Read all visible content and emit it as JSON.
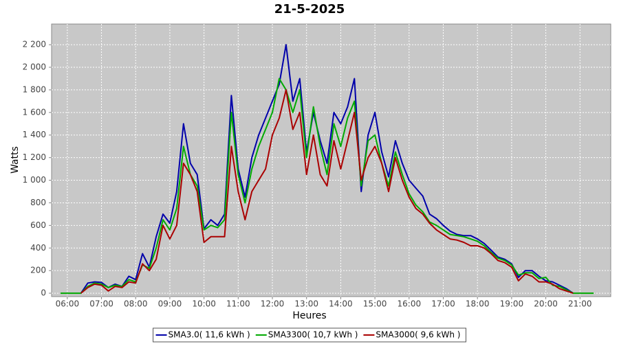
{
  "chart_data": {
    "type": "line",
    "title": "21-5-2025",
    "xlabel": "Heures",
    "ylabel": "Watts",
    "grid": true,
    "legend": "bottom",
    "xlim": [
      5.54,
      21.9
    ],
    "ylim": [
      -30,
      2383
    ],
    "xticks": [
      {
        "value": 6,
        "label": "06:00"
      },
      {
        "value": 7,
        "label": "07:00"
      },
      {
        "value": 8,
        "label": "08:00"
      },
      {
        "value": 9,
        "label": "09:00"
      },
      {
        "value": 10,
        "label": "10:00"
      },
      {
        "value": 11,
        "label": "11:00"
      },
      {
        "value": 12,
        "label": "12:00"
      },
      {
        "value": 13,
        "label": "13:00"
      },
      {
        "value": 14,
        "label": "14:00"
      },
      {
        "value": 15,
        "label": "15:00"
      },
      {
        "value": 16,
        "label": "16:00"
      },
      {
        "value": 17,
        "label": "17:00"
      },
      {
        "value": 18,
        "label": "18:00"
      },
      {
        "value": 19,
        "label": "19:00"
      },
      {
        "value": 20,
        "label": "20:00"
      },
      {
        "value": 21,
        "label": "21:00"
      }
    ],
    "yticks": [
      0,
      200,
      400,
      600,
      800,
      {
        "value": 1000,
        "label": "1 000"
      },
      {
        "value": 1200,
        "label": "1 200"
      },
      {
        "value": 1400,
        "label": "1 400"
      },
      {
        "value": 1600,
        "label": "1 600"
      },
      {
        "value": 1800,
        "label": "1 800"
      },
      {
        "value": 2000,
        "label": "2 000"
      },
      {
        "value": 2200,
        "label": "2 200"
      }
    ],
    "x": [
      5.8,
      6.0,
      6.2,
      6.4,
      6.6,
      6.8,
      7.0,
      7.2,
      7.4,
      7.6,
      7.8,
      8.0,
      8.2,
      8.4,
      8.6,
      8.8,
      9.0,
      9.2,
      9.4,
      9.6,
      9.8,
      10.0,
      10.2,
      10.4,
      10.6,
      10.8,
      11.0,
      11.2,
      11.4,
      11.6,
      11.8,
      12.0,
      12.2,
      12.4,
      12.6,
      12.8,
      13.0,
      13.2,
      13.4,
      13.6,
      13.8,
      14.0,
      14.2,
      14.4,
      14.6,
      14.8,
      15.0,
      15.2,
      15.4,
      15.6,
      15.8,
      16.0,
      16.2,
      16.4,
      16.6,
      16.8,
      17.0,
      17.2,
      17.4,
      17.6,
      17.8,
      18.0,
      18.2,
      18.4,
      18.6,
      18.8,
      19.0,
      19.2,
      19.4,
      19.6,
      19.8,
      20.0,
      20.2,
      20.4,
      20.6,
      20.8,
      21.0,
      21.2,
      21.4,
      21.6
    ],
    "series": [
      {
        "name": "SMA3.0( 11,6 kWh )",
        "color": "#0000aa",
        "values": [
          null,
          null,
          null,
          0,
          90,
          100,
          95,
          50,
          80,
          60,
          150,
          120,
          350,
          230,
          500,
          700,
          620,
          900,
          1500,
          1150,
          1050,
          570,
          650,
          600,
          700,
          1750,
          1100,
          850,
          1200,
          1400,
          1550,
          1700,
          1850,
          2200,
          1700,
          1900,
          1250,
          1600,
          1350,
          1150,
          1600,
          1500,
          1650,
          1900,
          900,
          1400,
          1600,
          1250,
          1030,
          1350,
          1150,
          1000,
          930,
          860,
          700,
          660,
          600,
          550,
          520,
          510,
          510,
          480,
          440,
          380,
          320,
          300,
          260,
          140,
          200,
          200,
          150,
          110,
          100,
          70,
          40,
          0,
          null,
          null,
          null,
          null
        ]
      },
      {
        "name": "SMA3300( 10,7 kWh )",
        "color": "#00aa00",
        "values": [
          0,
          0,
          0,
          0,
          60,
          90,
          80,
          50,
          70,
          60,
          120,
          100,
          250,
          220,
          400,
          650,
          560,
          750,
          1300,
          1050,
          950,
          560,
          600,
          580,
          650,
          1600,
          1050,
          800,
          1100,
          1300,
          1450,
          1600,
          1900,
          1800,
          1600,
          1800,
          1200,
          1650,
          1300,
          1050,
          1500,
          1300,
          1550,
          1700,
          950,
          1350,
          1400,
          1150,
          950,
          1250,
          1050,
          880,
          780,
          720,
          630,
          600,
          560,
          520,
          510,
          500,
          480,
          460,
          420,
          360,
          310,
          290,
          250,
          160,
          180,
          180,
          130,
          140,
          70,
          60,
          30,
          0,
          0,
          0,
          0,
          null
        ]
      },
      {
        "name": "SMA3000( 9,6 kWh )",
        "color": "#aa0000",
        "values": [
          null,
          null,
          null,
          0,
          50,
          80,
          70,
          20,
          60,
          50,
          100,
          90,
          260,
          200,
          300,
          600,
          480,
          600,
          1150,
          1050,
          900,
          450,
          500,
          500,
          500,
          1300,
          900,
          650,
          900,
          1000,
          1100,
          1400,
          1550,
          1800,
          1450,
          1600,
          1050,
          1400,
          1050,
          950,
          1350,
          1100,
          1350,
          1600,
          1000,
          1200,
          1300,
          1150,
          900,
          1200,
          1000,
          850,
          750,
          700,
          620,
          560,
          520,
          480,
          470,
          450,
          420,
          420,
          400,
          350,
          290,
          270,
          230,
          110,
          170,
          150,
          100,
          100,
          80,
          40,
          20,
          0,
          null,
          null,
          null,
          null
        ]
      }
    ]
  }
}
